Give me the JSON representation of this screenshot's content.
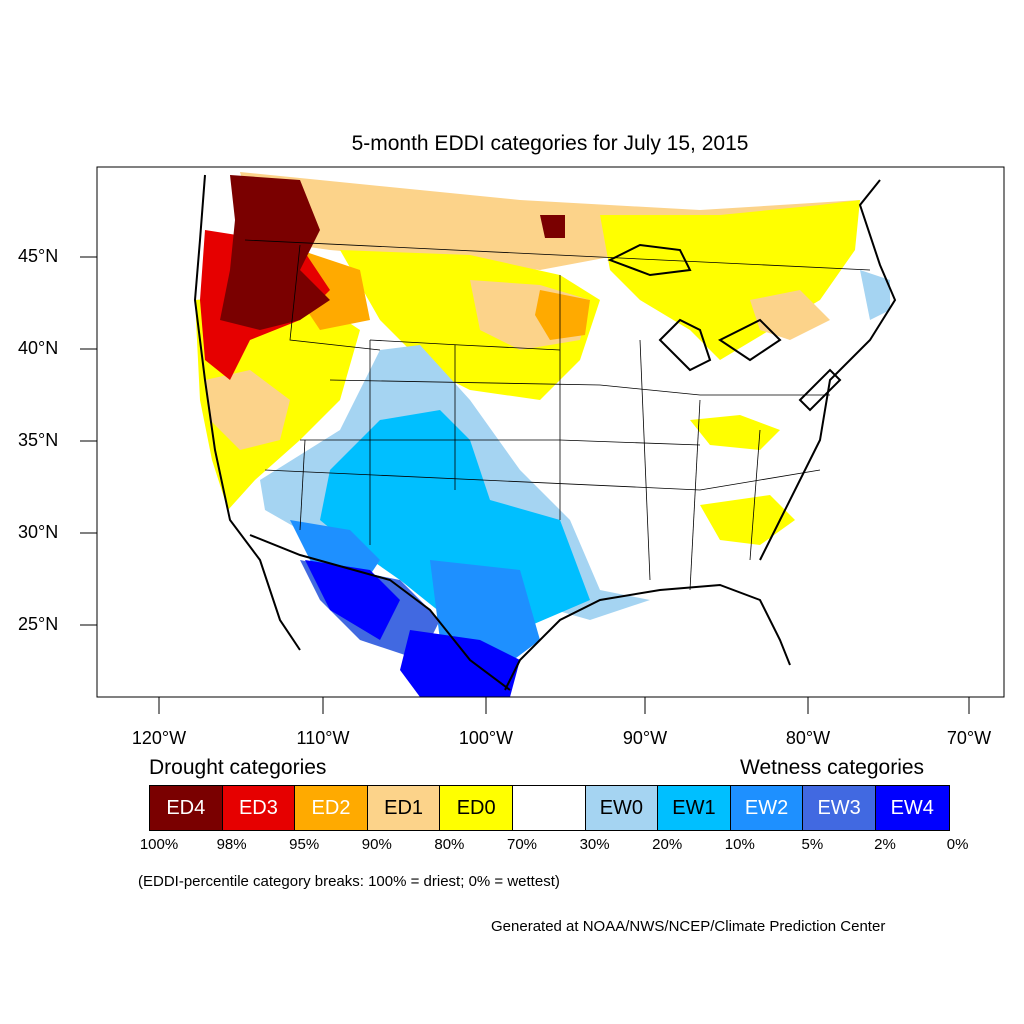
{
  "title": "5-month EDDI categories for July 15, 2015",
  "latitude_labels": [
    "45°N",
    "40°N",
    "35°N",
    "30°N",
    "25°N"
  ],
  "longitude_labels": [
    "120°W",
    "110°W",
    "100°W",
    "90°W",
    "80°W",
    "70°W"
  ],
  "legend": {
    "drought_heading": "Drought categories",
    "wetness_heading": "Wetness categories",
    "categories": [
      {
        "label": "ED4",
        "color": "#7a0000",
        "text_color": "#ffffff"
      },
      {
        "label": "ED3",
        "color": "#e60000",
        "text_color": "#ffffff"
      },
      {
        "label": "ED2",
        "color": "#ffaa00",
        "text_color": "#ffffff"
      },
      {
        "label": "ED1",
        "color": "#fcd38a",
        "text_color": "#000000"
      },
      {
        "label": "ED0",
        "color": "#ffff00",
        "text_color": "#000000"
      },
      {
        "label": "",
        "color": "#ffffff",
        "text_color": "#000000"
      },
      {
        "label": "EW0",
        "color": "#a5d4f2",
        "text_color": "#000000"
      },
      {
        "label": "EW1",
        "color": "#00bfff",
        "text_color": "#000000"
      },
      {
        "label": "EW2",
        "color": "#1e90ff",
        "text_color": "#ffffff"
      },
      {
        "label": "EW3",
        "color": "#4169e1",
        "text_color": "#ffffff"
      },
      {
        "label": "EW4",
        "color": "#0000ff",
        "text_color": "#ffffff"
      }
    ],
    "breaks": [
      "100%",
      "98%",
      "95%",
      "90%",
      "80%",
      "70%",
      "30%",
      "20%",
      "10%",
      "5%",
      "2%",
      "0%"
    ]
  },
  "note": "(EDDI-percentile category breaks: 100% = driest; 0% = wettest)",
  "credit": "Generated at NOAA/NWS/NCEP/Climate Prediction Center"
}
